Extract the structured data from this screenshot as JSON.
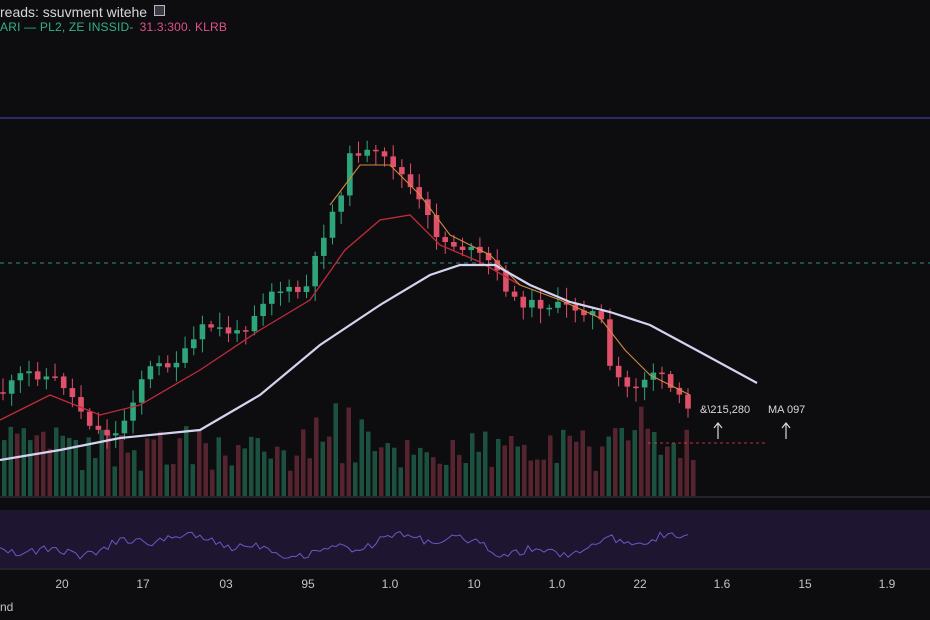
{
  "header": {
    "line1": "reads: ssuvment witehe",
    "symbol": "ARI — PL2, ZE INSSID-",
    "value": "31.3:300. KLRB"
  },
  "annotations": {
    "price_label": "&\\215,280",
    "ma_label": "MA 097"
  },
  "footer": {
    "text": "nd"
  },
  "colors": {
    "up": "#2fa57b",
    "down": "#e0506a",
    "slow_ma": "#d7d2f0",
    "mid_ma": "#c02a3e",
    "fast_ma": "#d08a42",
    "top_line": "#4b46c8",
    "level_line": "#2b8f86",
    "osc_line": "#6a58c8",
    "osc_bg": "#1e1530"
  },
  "chart_data": {
    "type": "candlestick",
    "x_tick_labels": [
      "20",
      "17",
      "03",
      "95",
      "1.0",
      "10",
      "1.0",
      "22",
      "1.6",
      "15",
      "1.9"
    ],
    "candle_count": 80
  }
}
